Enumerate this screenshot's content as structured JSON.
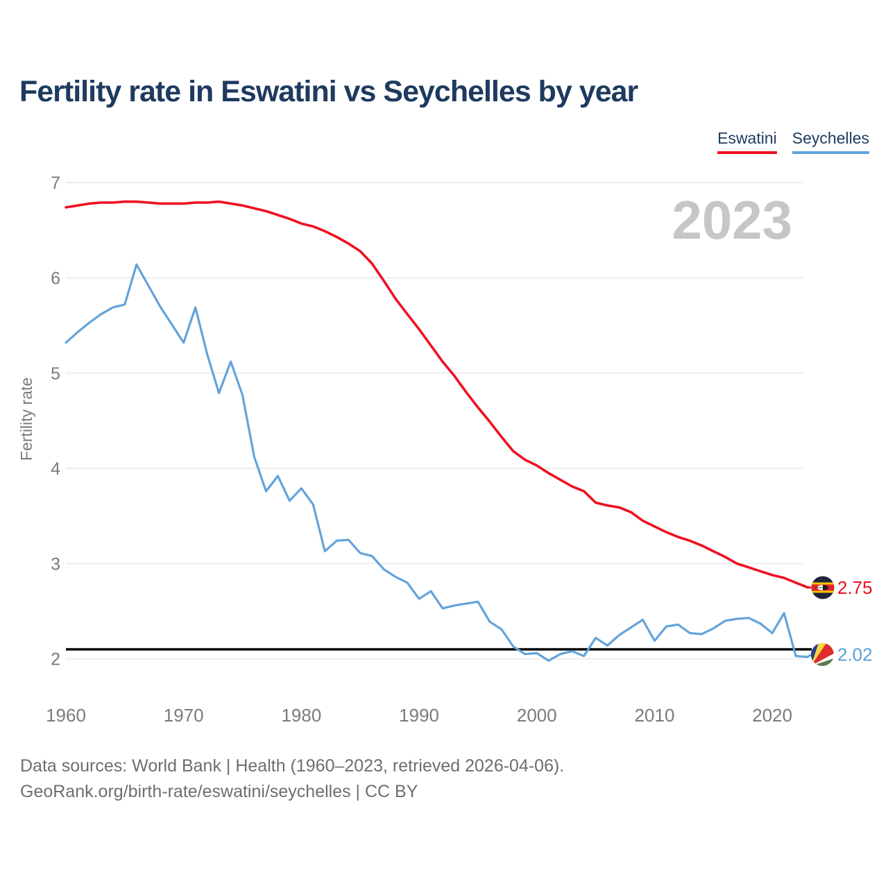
{
  "title": "Fertility rate in Eswatini vs Seychelles by year",
  "watermark": "2023",
  "legend": [
    {
      "label": "Eswatini",
      "color": "#ee1122"
    },
    {
      "label": "Seychelles",
      "color": "#63a3da"
    }
  ],
  "y_axis": {
    "label": "Fertility rate",
    "ticks": [
      7,
      6,
      5,
      4,
      3,
      2
    ]
  },
  "x_axis": {
    "ticks": [
      1960,
      1970,
      1980,
      1990,
      2000,
      2010,
      2020
    ]
  },
  "reference_line": {
    "value": 2.1,
    "color": "#000000"
  },
  "end_labels": [
    {
      "series": "Eswatini",
      "value": "2.75",
      "flag": "eswatini-flag",
      "color": "#ee1122"
    },
    {
      "series": "Seychelles",
      "value": "2.02",
      "flag": "seychelles-flag",
      "color": "#58a0da"
    }
  ],
  "footer": {
    "line1": "Data sources: World Bank | Health (1960–2023, retrieved 2026-04-06).",
    "line2": "GeoRank.org/birth-rate/eswatini/seychelles | CC BY"
  },
  "colors": {
    "title": "#1e3a5f",
    "eswatini": "#ee1122",
    "seychelles": "#63a3da",
    "seychelles_text": "#58a0da",
    "axis_text": "#7a7a7a",
    "gridline": "#ededed",
    "watermark": "#c6c6c6",
    "reference": "#000000"
  },
  "chart_data": {
    "type": "line",
    "title": "Fertility rate in Eswatini vs Seychelles by year",
    "xlabel": "",
    "ylabel": "Fertility rate",
    "ylim": [
      2,
      7.2
    ],
    "grid": "horizontal",
    "legend_position": "top-right",
    "watermark": "2023",
    "reference_line_y": 2.1,
    "x": [
      1960,
      1961,
      1962,
      1963,
      1964,
      1965,
      1966,
      1967,
      1968,
      1969,
      1970,
      1971,
      1972,
      1973,
      1974,
      1975,
      1976,
      1977,
      1978,
      1979,
      1980,
      1981,
      1982,
      1983,
      1984,
      1985,
      1986,
      1987,
      1988,
      1989,
      1990,
      1991,
      1992,
      1993,
      1994,
      1995,
      1996,
      1997,
      1998,
      1999,
      2000,
      2001,
      2002,
      2003,
      2004,
      2005,
      2006,
      2007,
      2008,
      2009,
      2010,
      2011,
      2012,
      2013,
      2014,
      2015,
      2016,
      2017,
      2018,
      2019,
      2020,
      2021,
      2022,
      2023
    ],
    "series": [
      {
        "name": "Eswatini",
        "color": "#ee1122",
        "end_label": "2.75",
        "values": [
          6.74,
          6.76,
          6.78,
          6.79,
          6.79,
          6.8,
          6.8,
          6.79,
          6.78,
          6.78,
          6.78,
          6.79,
          6.79,
          6.8,
          6.78,
          6.76,
          6.73,
          6.7,
          6.66,
          6.62,
          6.57,
          6.54,
          6.49,
          6.43,
          6.36,
          6.28,
          6.15,
          5.97,
          5.78,
          5.62,
          5.46,
          5.29,
          5.12,
          4.97,
          4.8,
          4.64,
          4.49,
          4.33,
          4.18,
          4.09,
          4.03,
          3.95,
          3.88,
          3.81,
          3.76,
          3.64,
          3.61,
          3.59,
          3.54,
          3.45,
          3.39,
          3.33,
          3.28,
          3.24,
          3.19,
          3.13,
          3.07,
          3.0,
          2.96,
          2.92,
          2.88,
          2.85,
          2.8,
          2.75
        ]
      },
      {
        "name": "Seychelles",
        "color": "#63a3da",
        "end_label": "2.02",
        "values": [
          5.32,
          5.43,
          5.53,
          5.62,
          5.69,
          5.72,
          6.14,
          5.92,
          5.7,
          5.51,
          5.32,
          5.69,
          5.2,
          4.79,
          5.12,
          4.77,
          4.12,
          3.76,
          3.92,
          3.66,
          3.79,
          3.62,
          3.13,
          3.24,
          3.25,
          3.11,
          3.08,
          2.94,
          2.86,
          2.8,
          2.63,
          2.71,
          2.53,
          2.56,
          2.58,
          2.6,
          2.39,
          2.31,
          2.13,
          2.05,
          2.06,
          1.98,
          2.05,
          2.08,
          2.03,
          2.22,
          2.14,
          2.25,
          2.33,
          2.41,
          2.19,
          2.34,
          2.36,
          2.27,
          2.26,
          2.32,
          2.4,
          2.42,
          2.43,
          2.37,
          2.27,
          2.48,
          2.03,
          2.02
        ]
      }
    ]
  }
}
